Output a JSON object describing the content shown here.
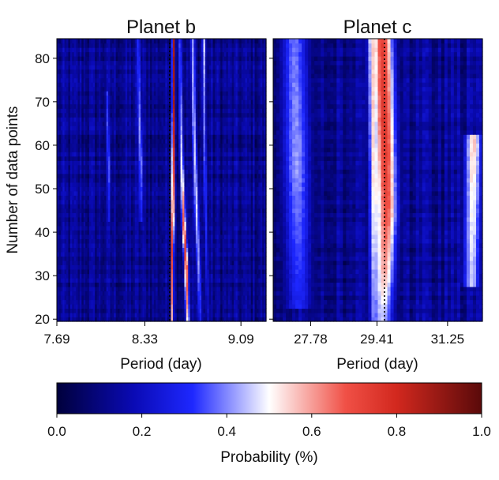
{
  "chart_data": [
    {
      "type": "heatmap",
      "title": "Planet b",
      "xlabel": "Period (day)",
      "ylabel": "Number of data points",
      "x_scale": "log",
      "xlim": [
        7.69,
        9.3
      ],
      "ylim": [
        19.5,
        84.5
      ],
      "xticks": [
        7.69,
        8.33,
        9.09
      ],
      "xtick_labels": [
        "7.69",
        "8.33",
        "9.09"
      ],
      "yticks": [
        20,
        30,
        40,
        50,
        60,
        70,
        80
      ],
      "ytick_labels": [
        "20",
        "30",
        "40",
        "50",
        "60",
        "70",
        "80"
      ],
      "reference_period": 8.52,
      "n_points": [
        20,
        84
      ],
      "ridges": [
        {
          "x": [
            8.54,
            8.54,
            8.545,
            8.55,
            8.55
          ],
          "y": [
            20,
            35,
            45,
            70,
            84
          ],
          "width": 0.012,
          "peak": [
            0.6,
            0.75,
            0.85,
            0.9,
            0.92
          ]
        },
        {
          "x": [
            8.66,
            8.65,
            8.63,
            8.61,
            8.6
          ],
          "y": [
            20,
            32,
            42,
            60,
            84
          ],
          "width": 0.018,
          "peak": [
            0.55,
            0.75,
            0.7,
            0.45,
            0.35
          ]
        },
        {
          "x": [
            8.76,
            8.75,
            8.73,
            8.71,
            8.7
          ],
          "y": [
            20,
            30,
            45,
            65,
            84
          ],
          "width": 0.02,
          "peak": [
            0.3,
            0.4,
            0.48,
            0.45,
            0.42
          ]
        },
        {
          "x": [
            8.82,
            8.81,
            8.8,
            8.79,
            8.79
          ],
          "y": [
            20,
            35,
            50,
            70,
            84
          ],
          "width": 0.016,
          "peak": [
            0.22,
            0.28,
            0.36,
            0.4,
            0.48
          ]
        },
        {
          "x": [
            8.3,
            8.3,
            8.29,
            8.28
          ],
          "y": [
            45,
            55,
            65,
            84
          ],
          "width": 0.018,
          "peak": [
            0.3,
            0.42,
            0.4,
            0.32
          ]
        },
        {
          "x": [
            8.06,
            8.06,
            8.05
          ],
          "y": [
            45,
            55,
            70
          ],
          "width": 0.014,
          "peak": [
            0.3,
            0.4,
            0.33
          ]
        }
      ],
      "background": 0.12
    },
    {
      "type": "heatmap",
      "title": "Planet c",
      "xlabel": "Period (day)",
      "ylabel": "",
      "x_scale": "log",
      "xlim": [
        26.9,
        32.2
      ],
      "ylim": [
        19.5,
        84.5
      ],
      "xticks": [
        27.78,
        29.41,
        31.25
      ],
      "xtick_labels": [
        "27.78",
        "29.41",
        "31.25"
      ],
      "yticks": [
        20,
        30,
        40,
        50,
        60,
        70,
        80
      ],
      "ytick_labels": [
        "",
        "",
        "",
        "",
        "",
        "",
        ""
      ],
      "reference_period": 29.6,
      "n_points": [
        20,
        84
      ],
      "ridges": [
        {
          "x": [
            29.55,
            29.6,
            29.65,
            29.6,
            29.55
          ],
          "y": [
            20,
            32,
            45,
            65,
            84
          ],
          "width": 0.3,
          "peak": [
            0.45,
            0.6,
            0.7,
            0.76,
            0.72
          ]
        },
        {
          "x": [
            29.35,
            29.35,
            29.3
          ],
          "y": [
            20,
            50,
            84
          ],
          "width": 0.15,
          "peak": [
            0.4,
            0.55,
            0.55
          ]
        },
        {
          "x": [
            27.5,
            27.45,
            27.4
          ],
          "y": [
            25,
            55,
            84
          ],
          "width": 0.35,
          "peak": [
            0.3,
            0.42,
            0.38
          ]
        },
        {
          "x": [
            31.9,
            31.95
          ],
          "y": [
            30,
            60
          ],
          "width": 0.25,
          "peak": [
            0.45,
            0.56
          ]
        }
      ],
      "background": 0.12
    }
  ],
  "colorbar": {
    "label": "Probability (%)",
    "range": [
      0.0,
      1.0
    ],
    "ticks": [
      0.0,
      0.2,
      0.4,
      0.6,
      0.8,
      1.0
    ],
    "tick_labels": [
      "0.0",
      "0.2",
      "0.4",
      "0.6",
      "0.8",
      "1.0"
    ],
    "stops": [
      {
        "v": 0.0,
        "color": "#00003c"
      },
      {
        "v": 0.18,
        "color": "#0a0ab4"
      },
      {
        "v": 0.32,
        "color": "#1e28ff"
      },
      {
        "v": 0.5,
        "color": "#ffffff"
      },
      {
        "v": 0.68,
        "color": "#f05046"
      },
      {
        "v": 0.8,
        "color": "#d2281e"
      },
      {
        "v": 1.0,
        "color": "#5a0a0a"
      }
    ]
  }
}
